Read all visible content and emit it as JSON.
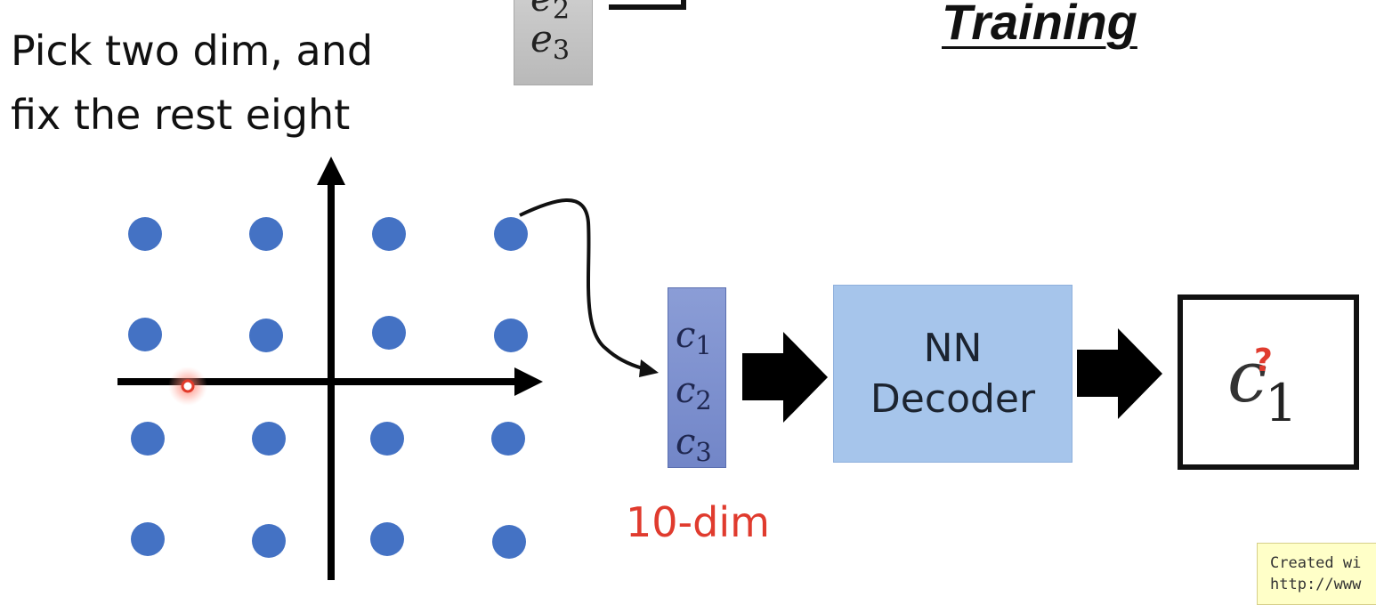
{
  "instruction": {
    "line1": "Pick two dim, and",
    "line2": "fix the rest eight"
  },
  "title": "Training",
  "top_vector": {
    "items": [
      {
        "letter": "e",
        "sub": "2"
      },
      {
        "letter": "e",
        "sub": "3"
      }
    ]
  },
  "code_vector": {
    "items": [
      {
        "letter": "c",
        "sub": "1"
      },
      {
        "letter": "c",
        "sub": "2"
      },
      {
        "letter": "c",
        "sub": "3"
      }
    ],
    "dim_label": "10-dim"
  },
  "decoder": {
    "line1": "NN",
    "line2": "Decoder"
  },
  "output": {
    "letter": "c",
    "sub": "1",
    "mark": "?"
  },
  "note": {
    "line1": "Created wi",
    "line2": "http://www"
  },
  "colors": {
    "dot": "#4472c4",
    "accent_red": "#e03b2e",
    "decoder_fill": "#a6c5eb",
    "code_fill": "#7f92cf"
  }
}
